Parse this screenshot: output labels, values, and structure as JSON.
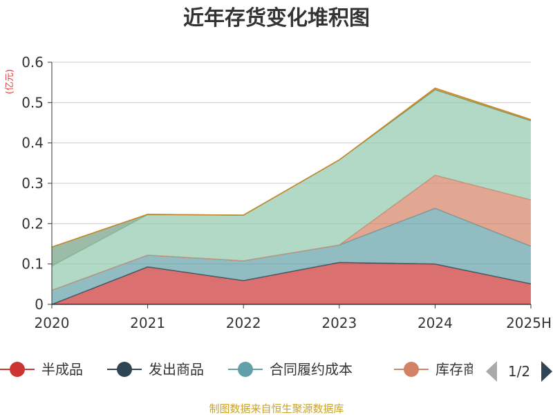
{
  "chart_data": {
    "type": "area",
    "stacked": true,
    "title": "近年存货变化堆积图",
    "unit_label": "(亿元)",
    "categories": [
      "2020",
      "2021",
      "2022",
      "2023",
      "2024",
      "2025H"
    ],
    "ylim": [
      0,
      0.6
    ],
    "yticks": [
      0,
      0.1,
      0.2,
      0.3,
      0.4,
      0.5,
      0.6
    ],
    "ytick_labels": [
      "0",
      "0.1",
      "0.2",
      "0.3",
      "0.4",
      "0.5",
      "0.6"
    ],
    "grid": true,
    "legend_position": "bottom",
    "series": [
      {
        "name": "半成品",
        "color": "#cc3333",
        "values": [
          0.0,
          0.093,
          0.059,
          0.104,
          0.1,
          0.051
        ]
      },
      {
        "name": "发出商品",
        "color": "#2f4554",
        "values": [
          0.0,
          0.0,
          0.0,
          0.0,
          0.0,
          0.0
        ]
      },
      {
        "name": "合同履约成本",
        "color": "#61a0a8",
        "values": [
          0.035,
          0.029,
          0.049,
          0.043,
          0.138,
          0.093
        ]
      },
      {
        "name": "库存商品",
        "color": "#d48265",
        "values": [
          0.0,
          0.0,
          0.0,
          0.0,
          0.082,
          0.115
        ]
      },
      {
        "color": "#91c7ae",
        "values": [
          0.06,
          0.1,
          0.113,
          0.211,
          0.212,
          0.196
        ]
      },
      {
        "color": "#749f83",
        "values": [
          0.047,
          0.001,
          0.0,
          0.0,
          0.0,
          0.0
        ]
      },
      {
        "color": "#ca8622",
        "values": [
          0.0,
          0.0,
          0.0,
          0.0,
          0.004,
          0.003
        ]
      }
    ]
  },
  "legend": {
    "items": [
      {
        "label": "半成品",
        "color": "#cc3333"
      },
      {
        "label": "发出商品",
        "color": "#2f4554"
      },
      {
        "label": "合同履约成本",
        "color": "#61a0a8"
      },
      {
        "label": "库存商",
        "color": "#d48265"
      }
    ],
    "page": "1/2"
  },
  "source": "制图数据来自恒生聚源数据库"
}
